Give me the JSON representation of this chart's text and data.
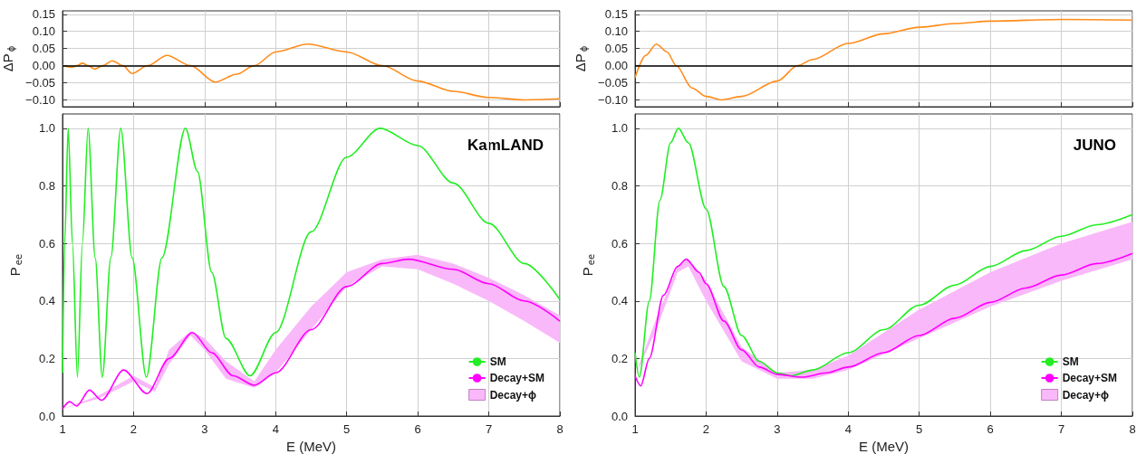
{
  "chart_data": [
    {
      "type": "line",
      "ylabel": "ΔP$_{ϕ}$",
      "xlim": [
        1,
        8
      ],
      "xticks": [
        1,
        2,
        3,
        4,
        5,
        6,
        7,
        8
      ],
      "ylim": [
        -0.12,
        0.16
      ],
      "yticks": [
        {
          "value": -0.1,
          "label": "−0.10"
        },
        {
          "value": -0.05,
          "label": "−0.05"
        },
        {
          "value": 0,
          "label": "0.00"
        },
        {
          "value": 0.05,
          "label": "0.05"
        },
        {
          "value": 0.1,
          "label": "0.10"
        },
        {
          "value": 0.15,
          "label": "0.15"
        }
      ],
      "grid": true,
      "legend": false,
      "tick_labels": "y",
      "ref_lines": [
        {
          "axis": "y",
          "value": 0,
          "color": "#000000"
        }
      ],
      "series": [
        {
          "color": "#ff8c1a",
          "x": [
            1.0,
            1.13,
            1.2,
            1.28,
            1.36,
            1.45,
            1.57,
            1.7,
            1.85,
            1.98,
            2.2,
            2.47,
            2.8,
            3.15,
            3.45,
            3.7,
            4.0,
            4.45,
            5.0,
            5.5,
            6.0,
            6.5,
            7.0,
            7.5,
            8.0
          ],
          "values": [
            0.0,
            -0.005,
            0.0,
            0.007,
            0.0,
            -0.01,
            0.0,
            0.014,
            0.0,
            -0.023,
            0.0,
            0.03,
            0.0,
            -0.048,
            -0.025,
            0.0,
            0.04,
            0.063,
            0.04,
            0.0,
            -0.045,
            -0.075,
            -0.093,
            -0.1,
            -0.097
          ]
        }
      ]
    },
    {
      "type": "line",
      "ylabel": "ΔP$_{ϕ}$",
      "xlim": [
        1,
        8
      ],
      "xticks": [
        1,
        2,
        3,
        4,
        5,
        6,
        7,
        8
      ],
      "ylim": [
        -0.12,
        0.16
      ],
      "yticks": [
        {
          "value": -0.1,
          "label": "−0.10"
        },
        {
          "value": -0.05,
          "label": "−0.05"
        },
        {
          "value": 0,
          "label": "0.00"
        },
        {
          "value": 0.05,
          "label": "0.05"
        },
        {
          "value": 0.1,
          "label": "0.10"
        },
        {
          "value": 0.15,
          "label": "0.15"
        }
      ],
      "grid": true,
      "legend": false,
      "tick_labels": "y",
      "ref_lines": [
        {
          "axis": "y",
          "value": 0,
          "color": "#000000"
        }
      ],
      "series": [
        {
          "color": "#ff8c1a",
          "x": [
            1.0,
            1.15,
            1.3,
            1.45,
            1.58,
            1.8,
            2.0,
            2.22,
            2.5,
            3.0,
            3.29,
            3.5,
            4.0,
            4.5,
            5.0,
            5.5,
            6.0,
            7.0,
            8.0
          ],
          "values": [
            -0.035,
            0.03,
            0.063,
            0.04,
            0.0,
            -0.065,
            -0.09,
            -0.1,
            -0.09,
            -0.045,
            0.0,
            0.018,
            0.065,
            0.093,
            0.112,
            0.123,
            0.13,
            0.135,
            0.133
          ]
        }
      ]
    },
    {
      "type": "line",
      "xlabel": "E (MeV)",
      "ylabel": "P$_{ee}$",
      "xlim": [
        1,
        8
      ],
      "xticks": [
        1,
        2,
        3,
        4,
        5,
        6,
        7,
        8
      ],
      "ylim": [
        0,
        1.05
      ],
      "yticks": [
        {
          "value": 0,
          "label": "0.0"
        },
        {
          "value": 0.2,
          "label": "0.2"
        },
        {
          "value": 0.4,
          "label": "0.4"
        },
        {
          "value": 0.6,
          "label": "0.6"
        },
        {
          "value": 0.8,
          "label": "0.8"
        },
        {
          "value": 1,
          "label": "1.0"
        }
      ],
      "grid": true,
      "legend": "bottom right",
      "annotations": [
        "KamLAND"
      ],
      "series": [
        {
          "name": "SM",
          "color": "#22ee22",
          "x": [
            1.0,
            1.03,
            1.08,
            1.14,
            1.21,
            1.28,
            1.36,
            1.46,
            1.56,
            1.68,
            1.82,
            1.98,
            2.18,
            2.4,
            2.73,
            2.9,
            3.1,
            3.3,
            3.64,
            4.0,
            4.5,
            5.0,
            5.47,
            6.0,
            6.5,
            7.0,
            7.5,
            8.0
          ],
          "values": [
            0.15,
            0.6,
            1.0,
            0.6,
            0.135,
            0.6,
            1.0,
            0.55,
            0.135,
            0.55,
            1.0,
            0.55,
            0.135,
            0.55,
            1.0,
            0.85,
            0.5,
            0.27,
            0.14,
            0.29,
            0.64,
            0.9,
            1.0,
            0.94,
            0.81,
            0.67,
            0.53,
            0.405
          ]
        },
        {
          "name": "Decay+SM",
          "color": "#ff00ff",
          "x": [
            1.0,
            1.1,
            1.2,
            1.38,
            1.55,
            1.86,
            2.19,
            2.5,
            2.83,
            3.1,
            3.4,
            3.7,
            4.0,
            4.5,
            5.0,
            5.5,
            5.87,
            6.5,
            7.0,
            7.5,
            8.0
          ],
          "values": [
            0.025,
            0.05,
            0.035,
            0.09,
            0.055,
            0.16,
            0.078,
            0.2,
            0.29,
            0.22,
            0.14,
            0.107,
            0.15,
            0.3,
            0.45,
            0.53,
            0.545,
            0.51,
            0.46,
            0.4,
            0.33
          ]
        },
        {
          "name": "Decay+ϕ",
          "type": "area",
          "color": "#f9b8f9",
          "x": [
            1.0,
            1.5,
            2.0,
            2.3,
            2.5,
            2.8,
            3.0,
            3.3,
            3.7,
            4.0,
            4.5,
            5.0,
            5.5,
            6.0,
            6.5,
            7.0,
            7.5,
            8.0
          ],
          "values": [
            null,
            null,
            null,
            null,
            null,
            null,
            null,
            null,
            null,
            null,
            null,
            null,
            null,
            null,
            null,
            null,
            null,
            null
          ],
          "lower": [
            0.025,
            0.06,
            0.12,
            0.085,
            0.18,
            0.28,
            0.23,
            0.13,
            0.098,
            0.15,
            0.3,
            0.45,
            0.52,
            0.51,
            0.46,
            0.4,
            0.33,
            0.255
          ],
          "upper": [
            0.025,
            0.07,
            0.14,
            0.1,
            0.23,
            0.295,
            0.27,
            0.19,
            0.12,
            0.23,
            0.38,
            0.5,
            0.545,
            0.56,
            0.53,
            0.48,
            0.42,
            0.35
          ]
        }
      ]
    },
    {
      "type": "line",
      "xlabel": "E (MeV)",
      "ylabel": "P$_{ee}$",
      "xlim": [
        1,
        8
      ],
      "xticks": [
        1,
        2,
        3,
        4,
        5,
        6,
        7,
        8
      ],
      "ylim": [
        0,
        1.05
      ],
      "yticks": [
        {
          "value": 0,
          "label": "0.0"
        },
        {
          "value": 0.2,
          "label": "0.2"
        },
        {
          "value": 0.4,
          "label": "0.4"
        },
        {
          "value": 0.6,
          "label": "0.6"
        },
        {
          "value": 0.8,
          "label": "0.8"
        },
        {
          "value": 1,
          "label": "1.0"
        }
      ],
      "grid": true,
      "legend": "bottom right",
      "annotations": [
        "JUNO"
      ],
      "series": [
        {
          "name": "SM",
          "color": "#22ee22",
          "x": [
            1.0,
            1.06,
            1.2,
            1.35,
            1.5,
            1.61,
            1.75,
            2.0,
            2.25,
            2.5,
            2.75,
            3.0,
            3.2,
            3.5,
            4.0,
            4.5,
            5.0,
            5.5,
            6.0,
            6.5,
            7.0,
            7.5,
            8.0
          ],
          "values": [
            0.22,
            0.135,
            0.4,
            0.75,
            0.95,
            1.0,
            0.95,
            0.72,
            0.45,
            0.28,
            0.19,
            0.15,
            0.14,
            0.16,
            0.22,
            0.3,
            0.385,
            0.455,
            0.52,
            0.575,
            0.625,
            0.665,
            0.7
          ]
        },
        {
          "name": "Decay+SM",
          "color": "#ff00ff",
          "x": [
            1.0,
            1.08,
            1.2,
            1.4,
            1.6,
            1.72,
            1.9,
            2.0,
            2.25,
            2.5,
            2.75,
            3.0,
            3.35,
            3.7,
            4.0,
            4.5,
            5.0,
            5.5,
            6.0,
            6.5,
            7.0,
            7.5,
            8.0
          ],
          "values": [
            0.14,
            0.105,
            0.2,
            0.42,
            0.52,
            0.545,
            0.5,
            0.46,
            0.33,
            0.23,
            0.17,
            0.145,
            0.135,
            0.15,
            0.17,
            0.22,
            0.28,
            0.34,
            0.395,
            0.445,
            0.49,
            0.53,
            0.565
          ]
        },
        {
          "name": "Decay+ϕ",
          "type": "area",
          "color": "#f9b8f9",
          "x": [
            1.0,
            1.3,
            1.6,
            1.75,
            2.0,
            2.5,
            3.0,
            3.5,
            4.0,
            5.0,
            6.0,
            7.0,
            8.0
          ],
          "values": [
            null,
            null,
            null,
            null,
            null,
            null,
            null,
            null,
            null,
            null,
            null,
            null,
            null
          ],
          "lower": [
            0.14,
            0.3,
            0.5,
            0.52,
            0.4,
            0.19,
            0.13,
            0.13,
            0.16,
            0.27,
            0.38,
            0.47,
            0.545
          ],
          "upper": [
            0.14,
            0.34,
            0.52,
            0.545,
            0.47,
            0.24,
            0.15,
            0.16,
            0.21,
            0.37,
            0.5,
            0.6,
            0.675
          ]
        }
      ]
    }
  ]
}
